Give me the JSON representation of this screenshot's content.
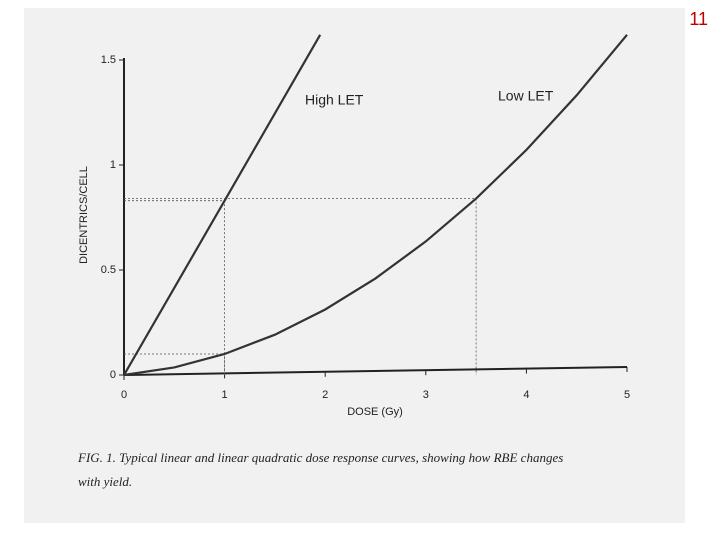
{
  "page_number": "11",
  "chart_data": {
    "type": "line",
    "x_label": "DOSE (Gy)",
    "y_label": "DICENTRICS/CELL",
    "caption": [
      "FIG. 1. Typical linear and linear quadratic dose response curves, showing how RBE changes",
      "with yield."
    ],
    "xlim": [
      0,
      5
    ],
    "xticks": [
      0,
      1,
      2,
      3,
      4,
      5
    ],
    "ylim": [
      0,
      1.5
    ],
    "yticks": [
      0,
      0.5,
      1,
      1.5
    ],
    "series": [
      {
        "name": "High LET",
        "color": "#333333",
        "x": [
          0,
          1,
          1.95
        ],
        "values": [
          0,
          0.83,
          1.62
        ]
      },
      {
        "name": "Low LET",
        "color": "#333333",
        "x": [
          0,
          0.5,
          1,
          1.5,
          2,
          2.5,
          3,
          3.5,
          4,
          4.5,
          5
        ],
        "values": [
          0,
          0.036,
          0.1,
          0.192,
          0.312,
          0.46,
          0.636,
          0.84,
          1.072,
          1.332,
          1.62
        ]
      }
    ]
  }
}
